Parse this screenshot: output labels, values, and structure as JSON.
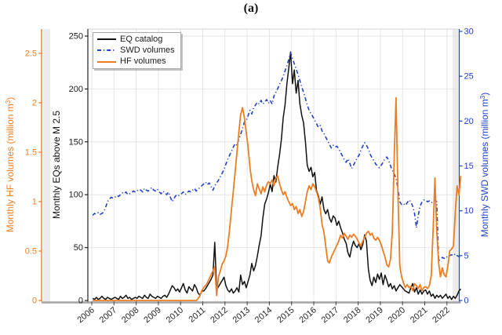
{
  "figure": {
    "title": "(a)"
  },
  "legend": {
    "items": [
      {
        "label": "EQ catalog",
        "series": "eq"
      },
      {
        "label": "SWD volumes",
        "series": "swd"
      },
      {
        "label": "HF volumes",
        "series": "hf"
      }
    ]
  },
  "colors": {
    "eq": "#111111",
    "swd": "#2442C4",
    "hf": "#ED7D22",
    "grid": "#e4e4e4",
    "band": "#ececec",
    "bottom_spine": "#a6a6a6",
    "tick": "#404040",
    "year_label": "#262626"
  },
  "chart_data": {
    "type": "line",
    "title": "(a)",
    "start_month": "2006-01",
    "end_month": "2022-08",
    "grid": true,
    "legend_position": "top-left",
    "x_axis": {
      "tick_labels": [
        "2006",
        "2007",
        "2008",
        "2009",
        "2010",
        "2011",
        "2012",
        "2013",
        "2014",
        "2015",
        "2016",
        "2017",
        "2018",
        "2019",
        "2020",
        "2021",
        "2022"
      ],
      "label_rotation_deg": -40
    },
    "y_axes": {
      "hf": {
        "side": "far-left",
        "color": "#ED7D22",
        "ticks": [
          0,
          0.5,
          1,
          1.5,
          2,
          2.5
        ],
        "range": [
          0,
          2.75
        ],
        "label": "Monthly HF volumes (million m³)",
        "label_parts": {
          "pre": "Monthly HF volumes (million m",
          "sup": "3",
          "post": ")"
        }
      },
      "eq": {
        "side": "left",
        "color": "#111111",
        "ticks": [
          0,
          50,
          100,
          150,
          200,
          250
        ],
        "range": [
          0,
          257
        ],
        "label": "Monthly EQs above M 2.5",
        "label_parts": {
          "pre": "Monthly EQs above M 2.5",
          "sup": "",
          "post": ""
        }
      },
      "swd": {
        "side": "right",
        "color": "#2442C4",
        "ticks": [
          0,
          5,
          10,
          15,
          20,
          25,
          30
        ],
        "range": [
          0,
          30.3
        ],
        "label": "Monthly SWD volumes (million m³)",
        "label_parts": {
          "pre": "Monthly SWD volumes (million m",
          "sup": "3",
          "post": ")"
        }
      }
    },
    "series": [
      {
        "name": "EQ catalog",
        "axis": "eq",
        "color": "#111111",
        "style": "solid",
        "width": 1.5,
        "monthly_values": [
          2,
          1,
          3,
          1,
          2,
          4,
          2,
          1,
          3,
          2,
          1,
          2,
          3,
          2,
          1,
          4,
          2,
          3,
          5,
          2,
          3,
          1,
          2,
          3,
          2,
          4,
          3,
          2,
          5,
          3,
          2,
          6,
          4,
          3,
          2,
          4,
          3,
          2,
          4,
          5,
          3,
          6,
          10,
          14,
          12,
          9,
          11,
          8,
          12,
          16,
          10,
          7,
          13,
          11,
          9,
          15,
          12,
          7,
          5,
          9,
          9,
          11,
          14,
          17,
          20,
          24,
          55,
          10,
          13,
          16,
          19,
          22,
          14,
          10,
          8,
          11,
          7,
          9,
          12,
          8,
          24,
          15,
          18,
          12,
          18,
          24,
          35,
          28,
          33,
          42,
          52,
          61,
          78,
          91,
          96,
          102,
          110,
          103,
          118,
          112,
          126,
          138,
          152,
          173,
          185,
          205,
          220,
          235,
          205,
          218,
          196,
          208,
          186,
          175,
          168,
          150,
          128,
          122,
          126,
          117,
          121,
          104,
          99,
          91,
          98,
          86,
          82,
          86,
          78,
          74,
          80,
          78,
          71,
          75,
          69,
          64,
          58,
          54,
          45,
          41,
          50,
          56,
          52,
          50,
          54,
          48,
          53,
          62,
          56,
          30,
          19,
          14,
          22,
          17,
          25,
          20,
          26,
          15,
          24,
          19,
          13,
          16,
          11,
          14,
          9,
          12,
          15,
          13,
          11,
          9,
          8,
          7,
          12,
          16,
          8,
          12,
          6,
          10,
          6,
          9,
          10,
          6,
          9,
          4,
          6,
          2,
          5,
          3,
          5,
          2,
          4,
          6,
          2,
          4,
          1,
          4,
          2,
          5,
          9,
          11
        ]
      },
      {
        "name": "SWD volumes",
        "axis": "swd",
        "color": "#2442C4",
        "style": "dash-dot",
        "width": 1.6,
        "monthly_values": [
          9.5,
          9.7,
          9.6,
          9.8,
          9.6,
          9.7,
          9.9,
          10.4,
          11.0,
          11.3,
          11.5,
          11.4,
          11.5,
          11.7,
          11.6,
          11.8,
          12.0,
          11.9,
          12.1,
          11.8,
          11.9,
          12.0,
          12.2,
          12.1,
          12.2,
          12.4,
          12.3,
          12.1,
          12.5,
          12.3,
          12.2,
          12.4,
          12.6,
          12.3,
          12.2,
          12.4,
          12.1,
          11.9,
          12.2,
          12.0,
          11.8,
          12.1,
          11.5,
          11.0,
          11.4,
          11.7,
          11.6,
          11.8,
          11.9,
          12.1,
          11.8,
          12.0,
          12.2,
          12.1,
          12.3,
          12.5,
          12.2,
          12.4,
          12.6,
          12.8,
          13.0,
          13.2,
          12.9,
          13.1,
          12.7,
          12.3,
          12.8,
          13.1,
          13.4,
          13.8,
          14.2,
          14.6,
          15.2,
          15.7,
          16.2,
          16.6,
          17.1,
          17.5,
          17.3,
          18.0,
          18.5,
          19.2,
          19.9,
          20.1,
          20.6,
          21.2,
          20.8,
          21.5,
          21.8,
          22.1,
          21.9,
          22.3,
          21.9,
          22.1,
          22.4,
          22.0,
          22.3,
          21.9,
          22.8,
          23.2,
          23.6,
          24.1,
          24.5,
          25.0,
          25.6,
          26.2,
          26.9,
          27.6,
          27.0,
          26.4,
          25.8,
          25.2,
          24.5,
          23.8,
          23.2,
          22.5,
          21.8,
          21.2,
          20.8,
          20.5,
          20.1,
          19.7,
          19.3,
          19.5,
          18.9,
          18.6,
          18.2,
          17.8,
          17.4,
          17.0,
          17.3,
          17.1,
          17.2,
          16.9,
          16.5,
          16.1,
          15.7,
          15.4,
          15.8,
          15.3,
          14.7,
          15.1,
          15.5,
          15.9,
          16.2,
          16.8,
          17.2,
          17.6,
          17.3,
          16.9,
          16.3,
          15.9,
          15.6,
          15.2,
          15.0,
          14.8,
          15.1,
          15.4,
          15.8,
          16.0,
          15.6,
          15.0,
          14.5,
          14.1,
          13.6,
          12.5,
          11.0,
          10.7,
          10.8,
          10.6,
          10.9,
          11.2,
          11.0,
          10.5,
          9.7,
          8.1,
          9.5,
          10.5,
          11.0,
          11.2,
          11.2,
          11.0,
          11.1,
          10.9,
          11.0,
          11.2,
          11.0,
          4.4,
          4.6,
          4.8,
          4.7,
          4.9,
          4.8,
          5.0,
          5.1,
          5.0,
          5.2,
          5.0,
          4.9,
          4.6
        ]
      },
      {
        "name": "HF volumes",
        "axis": "hf",
        "color": "#ED7D22",
        "style": "solid",
        "width": 1.8,
        "monthly_values": [
          0,
          0,
          0,
          0,
          0,
          0,
          0,
          0,
          0,
          0,
          0,
          0,
          0,
          0,
          0,
          0,
          0,
          0,
          0,
          0,
          0,
          0,
          0,
          0,
          0,
          0,
          0,
          0,
          0,
          0,
          0,
          0,
          0,
          0,
          0,
          0,
          0,
          0,
          0,
          0,
          0,
          0,
          0,
          0,
          0,
          0,
          0,
          0,
          0,
          0,
          0,
          0,
          0,
          0,
          0,
          0,
          0,
          0.02,
          0.05,
          0.1,
          0.13,
          0.15,
          0.18,
          0.22,
          0.26,
          0.3,
          0.34,
          0.05,
          0.24,
          0.3,
          0.37,
          0.4,
          0.45,
          0.55,
          0.72,
          0.92,
          1.1,
          1.3,
          1.5,
          1.7,
          1.88,
          1.95,
          1.85,
          1.7,
          1.55,
          1.35,
          1.21,
          1.12,
          1.06,
          1.18,
          1.13,
          1.08,
          1.15,
          1.1,
          1.17,
          1.2,
          1.18,
          1.22,
          1.16,
          1.24,
          1.26,
          1.18,
          1.12,
          1.07,
          1.1,
          1.04,
          1.0,
          0.96,
          0.98,
          0.92,
          0.95,
          0.88,
          0.92,
          0.85,
          0.9,
          1.0,
          1.1,
          1.16,
          1.12,
          1.18,
          1.15,
          1.1,
          1.04,
          0.93,
          0.77,
          0.69,
          0.55,
          0.4,
          0.38,
          0.44,
          0.48,
          0.52,
          0.56,
          0.6,
          0.66,
          0.63,
          0.68,
          0.65,
          0.62,
          0.66,
          0.64,
          0.67,
          0.65,
          0.62,
          0.58,
          0.55,
          0.6,
          0.64,
          0.68,
          0.7,
          0.66,
          0.68,
          0.63,
          0.61,
          0.64,
          0.61,
          0.56,
          0.5,
          0.44,
          0.36,
          0.34,
          0.42,
          0.7,
          1.45,
          2.05,
          1.1,
          0.35,
          0.24,
          0.18,
          0.13,
          0.16,
          0.13,
          0.14,
          0.1,
          0.17,
          0.15,
          0.12,
          0.16,
          0.1,
          0.13,
          0.14,
          0.12,
          0.15,
          0.25,
          0.7,
          1.24,
          0.7,
          0.38,
          0.24,
          0.33,
          0.26,
          0.24,
          0.35,
          0.5,
          0.52,
          0.55,
          0.88,
          1.16,
          1.07,
          1.26
        ]
      }
    ]
  }
}
